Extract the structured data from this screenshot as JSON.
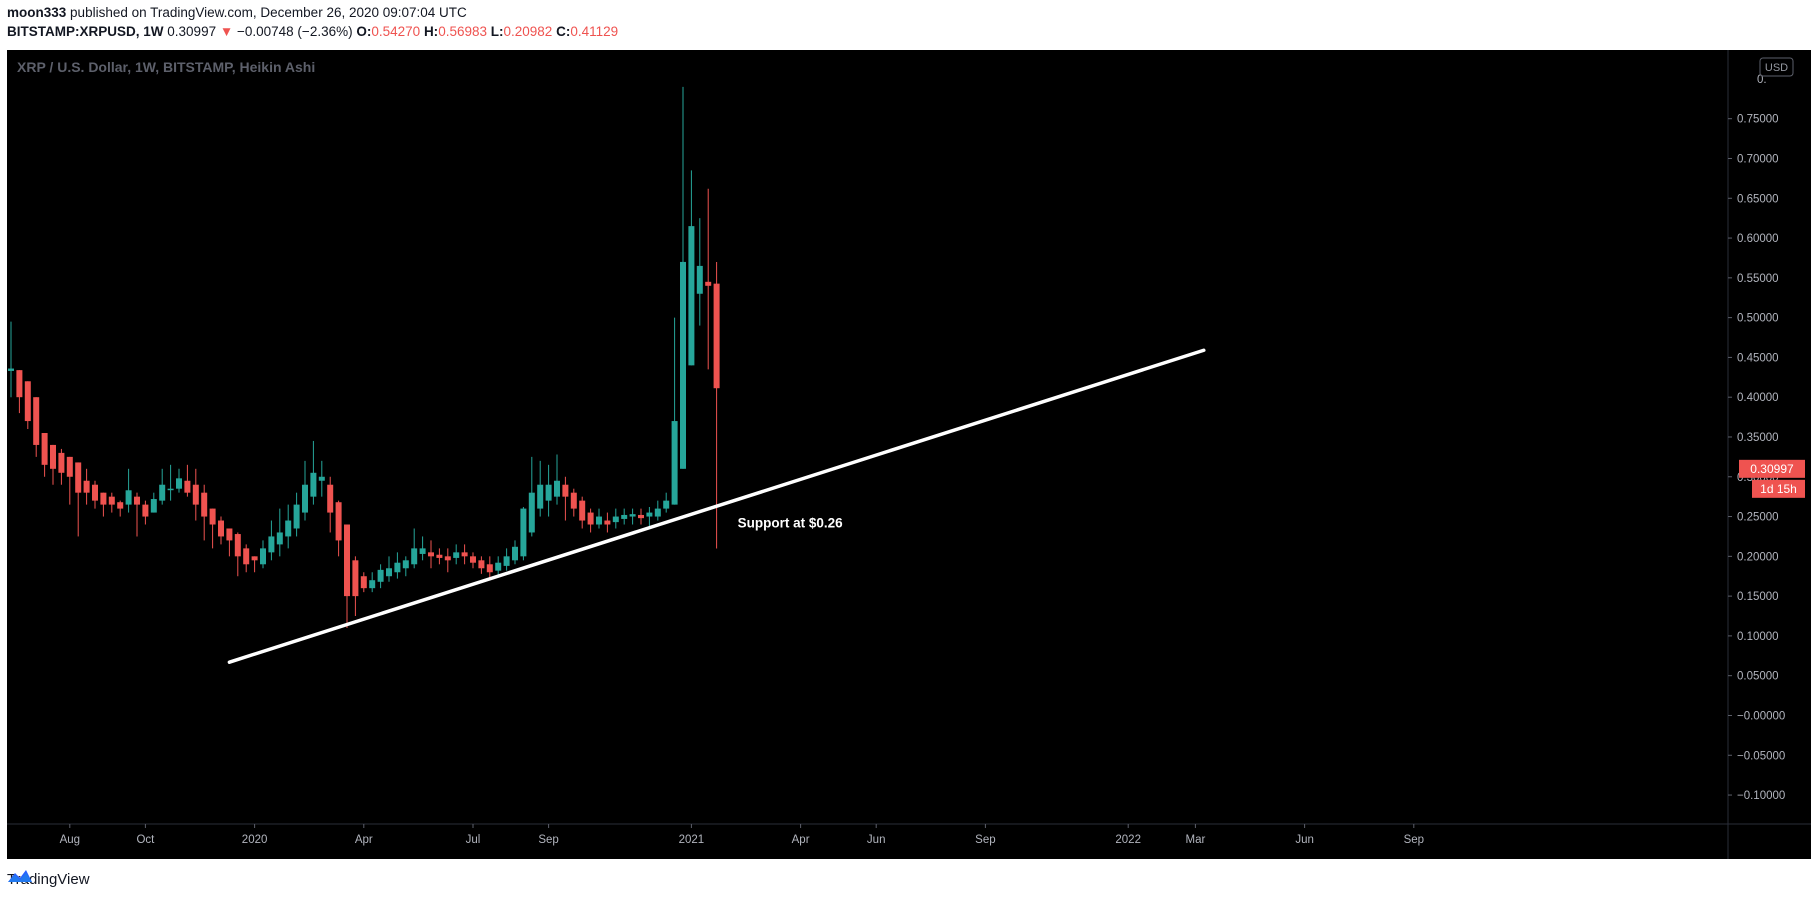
{
  "header": {
    "author": "moon333",
    "published_text": "published on TradingView.com, December 26, 2020 09:07:04 UTC",
    "symbol": "BITSTAMP:XRPUSD, 1W",
    "price": "0.30997",
    "arrow": "▼",
    "change": "−0.00748 (−2.36%)",
    "ohlc": [
      {
        "label": "O:",
        "value": "0.54270"
      },
      {
        "label": "H:",
        "value": "0.56983"
      },
      {
        "label": "L:",
        "value": "0.20982"
      },
      {
        "label": "C:",
        "value": "0.41129"
      }
    ]
  },
  "colors": {
    "up": "#26a69a",
    "down": "#ef5350",
    "background": "#000000",
    "axis_text": "#b2b5be",
    "trendline": "#ffffff"
  },
  "footer": {
    "brand": "TradingView",
    "logo_icon": "tradingview-logo-icon"
  },
  "chart_data": {
    "type": "candlestick",
    "title": "XRP / U.S. Dollar, 1W, BITSTAMP, Heikin Ashi",
    "currency": "USD",
    "ylim": [
      -0.11,
      0.82
    ],
    "y_ticks": [
      "0.75000",
      "0.70000",
      "0.65000",
      "0.60000",
      "0.55000",
      "0.50000",
      "0.45000",
      "0.40000",
      "0.35000",
      "0.30000",
      "0.25000",
      "0.20000",
      "0.15000",
      "0.10000",
      "0.05000",
      "−0.00000",
      "−0.05000",
      "−0.10000"
    ],
    "y_tick_values": [
      0.75,
      0.7,
      0.65,
      0.6,
      0.55,
      0.5,
      0.45,
      0.4,
      0.35,
      0.3,
      0.25,
      0.2,
      0.15,
      0.1,
      0.05,
      0.0,
      -0.05,
      -0.1
    ],
    "y_top_partial_label": "0.",
    "x_ticks": [
      {
        "label": "Aug",
        "week": 7
      },
      {
        "label": "Oct",
        "week": 16
      },
      {
        "label": "2020",
        "week": 29
      },
      {
        "label": "Apr",
        "week": 42
      },
      {
        "label": "Jul",
        "week": 55
      },
      {
        "label": "Sep",
        "week": 64
      },
      {
        "label": "2021",
        "week": 81
      },
      {
        "label": "Apr",
        "week": 94
      },
      {
        "label": "Jun",
        "week": 103
      },
      {
        "label": "Sep",
        "week": 116
      },
      {
        "label": "2022",
        "week": 133
      },
      {
        "label": "Mar",
        "week": 141
      },
      {
        "label": "Jun",
        "week": 154
      },
      {
        "label": "Sep",
        "week": 167
      }
    ],
    "candles": [
      {
        "o": 0.433,
        "h": 0.495,
        "l": 0.4,
        "c": 0.436
      },
      {
        "o": 0.434,
        "h": 0.434,
        "l": 0.38,
        "c": 0.4
      },
      {
        "o": 0.42,
        "h": 0.42,
        "l": 0.36,
        "c": 0.37
      },
      {
        "o": 0.4,
        "h": 0.4,
        "l": 0.325,
        "c": 0.34
      },
      {
        "o": 0.355,
        "h": 0.355,
        "l": 0.3,
        "c": 0.315
      },
      {
        "o": 0.34,
        "h": 0.34,
        "l": 0.29,
        "c": 0.31
      },
      {
        "o": 0.33,
        "h": 0.335,
        "l": 0.29,
        "c": 0.305
      },
      {
        "o": 0.325,
        "h": 0.325,
        "l": 0.265,
        "c": 0.3
      },
      {
        "o": 0.318,
        "h": 0.318,
        "l": 0.225,
        "c": 0.28
      },
      {
        "o": 0.295,
        "h": 0.31,
        "l": 0.265,
        "c": 0.28
      },
      {
        "o": 0.29,
        "h": 0.295,
        "l": 0.26,
        "c": 0.27
      },
      {
        "o": 0.28,
        "h": 0.28,
        "l": 0.25,
        "c": 0.265
      },
      {
        "o": 0.275,
        "h": 0.28,
        "l": 0.255,
        "c": 0.265
      },
      {
        "o": 0.268,
        "h": 0.27,
        "l": 0.25,
        "c": 0.26
      },
      {
        "o": 0.265,
        "h": 0.31,
        "l": 0.255,
        "c": 0.283
      },
      {
        "o": 0.275,
        "h": 0.28,
        "l": 0.225,
        "c": 0.265
      },
      {
        "o": 0.265,
        "h": 0.27,
        "l": 0.24,
        "c": 0.25
      },
      {
        "o": 0.255,
        "h": 0.28,
        "l": 0.255,
        "c": 0.272
      },
      {
        "o": 0.27,
        "h": 0.31,
        "l": 0.265,
        "c": 0.29
      },
      {
        "o": 0.285,
        "h": 0.315,
        "l": 0.27,
        "c": 0.285
      },
      {
        "o": 0.285,
        "h": 0.31,
        "l": 0.28,
        "c": 0.298
      },
      {
        "o": 0.295,
        "h": 0.315,
        "l": 0.275,
        "c": 0.28
      },
      {
        "o": 0.29,
        "h": 0.31,
        "l": 0.245,
        "c": 0.265
      },
      {
        "o": 0.28,
        "h": 0.29,
        "l": 0.22,
        "c": 0.25
      },
      {
        "o": 0.26,
        "h": 0.26,
        "l": 0.21,
        "c": 0.24
      },
      {
        "o": 0.245,
        "h": 0.25,
        "l": 0.215,
        "c": 0.225
      },
      {
        "o": 0.235,
        "h": 0.235,
        "l": 0.2,
        "c": 0.22
      },
      {
        "o": 0.228,
        "h": 0.23,
        "l": 0.175,
        "c": 0.2
      },
      {
        "o": 0.21,
        "h": 0.215,
        "l": 0.18,
        "c": 0.19
      },
      {
        "o": 0.2,
        "h": 0.2,
        "l": 0.18,
        "c": 0.195
      },
      {
        "o": 0.19,
        "h": 0.22,
        "l": 0.185,
        "c": 0.21
      },
      {
        "o": 0.205,
        "h": 0.245,
        "l": 0.195,
        "c": 0.225
      },
      {
        "o": 0.215,
        "h": 0.26,
        "l": 0.2,
        "c": 0.23
      },
      {
        "o": 0.225,
        "h": 0.265,
        "l": 0.21,
        "c": 0.245
      },
      {
        "o": 0.235,
        "h": 0.28,
        "l": 0.225,
        "c": 0.265
      },
      {
        "o": 0.255,
        "h": 0.32,
        "l": 0.245,
        "c": 0.29
      },
      {
        "o": 0.275,
        "h": 0.345,
        "l": 0.265,
        "c": 0.305
      },
      {
        "o": 0.295,
        "h": 0.32,
        "l": 0.275,
        "c": 0.3
      },
      {
        "o": 0.29,
        "h": 0.3,
        "l": 0.23,
        "c": 0.255
      },
      {
        "o": 0.268,
        "h": 0.27,
        "l": 0.2,
        "c": 0.22
      },
      {
        "o": 0.24,
        "h": 0.24,
        "l": 0.11,
        "c": 0.15
      },
      {
        "o": 0.195,
        "h": 0.2,
        "l": 0.125,
        "c": 0.15
      },
      {
        "o": 0.175,
        "h": 0.18,
        "l": 0.155,
        "c": 0.16
      },
      {
        "o": 0.16,
        "h": 0.18,
        "l": 0.155,
        "c": 0.17
      },
      {
        "o": 0.168,
        "h": 0.19,
        "l": 0.16,
        "c": 0.183
      },
      {
        "o": 0.175,
        "h": 0.2,
        "l": 0.168,
        "c": 0.185
      },
      {
        "o": 0.18,
        "h": 0.205,
        "l": 0.172,
        "c": 0.192
      },
      {
        "o": 0.185,
        "h": 0.2,
        "l": 0.175,
        "c": 0.195
      },
      {
        "o": 0.19,
        "h": 0.235,
        "l": 0.185,
        "c": 0.21
      },
      {
        "o": 0.203,
        "h": 0.225,
        "l": 0.195,
        "c": 0.21
      },
      {
        "o": 0.205,
        "h": 0.22,
        "l": 0.185,
        "c": 0.2
      },
      {
        "o": 0.202,
        "h": 0.21,
        "l": 0.19,
        "c": 0.198
      },
      {
        "o": 0.2,
        "h": 0.21,
        "l": 0.18,
        "c": 0.195
      },
      {
        "o": 0.198,
        "h": 0.215,
        "l": 0.19,
        "c": 0.205
      },
      {
        "o": 0.205,
        "h": 0.215,
        "l": 0.19,
        "c": 0.2
      },
      {
        "o": 0.2,
        "h": 0.205,
        "l": 0.185,
        "c": 0.192
      },
      {
        "o": 0.195,
        "h": 0.2,
        "l": 0.178,
        "c": 0.185
      },
      {
        "o": 0.19,
        "h": 0.2,
        "l": 0.17,
        "c": 0.18
      },
      {
        "o": 0.182,
        "h": 0.2,
        "l": 0.175,
        "c": 0.192
      },
      {
        "o": 0.188,
        "h": 0.21,
        "l": 0.182,
        "c": 0.2
      },
      {
        "o": 0.195,
        "h": 0.22,
        "l": 0.19,
        "c": 0.212
      },
      {
        "o": 0.2,
        "h": 0.262,
        "l": 0.195,
        "c": 0.26
      },
      {
        "o": 0.23,
        "h": 0.325,
        "l": 0.225,
        "c": 0.28
      },
      {
        "o": 0.26,
        "h": 0.32,
        "l": 0.25,
        "c": 0.29
      },
      {
        "o": 0.27,
        "h": 0.315,
        "l": 0.25,
        "c": 0.29
      },
      {
        "o": 0.275,
        "h": 0.328,
        "l": 0.265,
        "c": 0.295
      },
      {
        "o": 0.29,
        "h": 0.3,
        "l": 0.245,
        "c": 0.275
      },
      {
        "o": 0.28,
        "h": 0.285,
        "l": 0.25,
        "c": 0.26
      },
      {
        "o": 0.27,
        "h": 0.275,
        "l": 0.235,
        "c": 0.245
      },
      {
        "o": 0.255,
        "h": 0.26,
        "l": 0.23,
        "c": 0.24
      },
      {
        "o": 0.24,
        "h": 0.26,
        "l": 0.235,
        "c": 0.25
      },
      {
        "o": 0.245,
        "h": 0.255,
        "l": 0.23,
        "c": 0.24
      },
      {
        "o": 0.243,
        "h": 0.26,
        "l": 0.235,
        "c": 0.25
      },
      {
        "o": 0.247,
        "h": 0.26,
        "l": 0.24,
        "c": 0.252
      },
      {
        "o": 0.25,
        "h": 0.26,
        "l": 0.24,
        "c": 0.253
      },
      {
        "o": 0.252,
        "h": 0.26,
        "l": 0.24,
        "c": 0.248
      },
      {
        "o": 0.25,
        "h": 0.262,
        "l": 0.235,
        "c": 0.255
      },
      {
        "o": 0.25,
        "h": 0.27,
        "l": 0.245,
        "c": 0.26
      },
      {
        "o": 0.26,
        "h": 0.28,
        "l": 0.255,
        "c": 0.27
      },
      {
        "o": 0.265,
        "h": 0.5,
        "l": 0.265,
        "c": 0.37
      },
      {
        "o": 0.31,
        "h": 0.79,
        "l": 0.31,
        "c": 0.57
      },
      {
        "o": 0.44,
        "h": 0.685,
        "l": 0.44,
        "c": 0.615
      },
      {
        "o": 0.53,
        "h": 0.625,
        "l": 0.49,
        "c": 0.565
      },
      {
        "o": 0.545,
        "h": 0.662,
        "l": 0.435,
        "c": 0.54
      },
      {
        "o": 0.5427,
        "h": 0.56983,
        "l": 0.20982,
        "c": 0.41129
      }
    ],
    "trendline": {
      "x1": 26,
      "y1": 0.067,
      "x2": 142,
      "y2": 0.459
    },
    "annotation": "Support at $0.26",
    "price_label": "0.30997",
    "countdown_label": "1d 15h"
  }
}
